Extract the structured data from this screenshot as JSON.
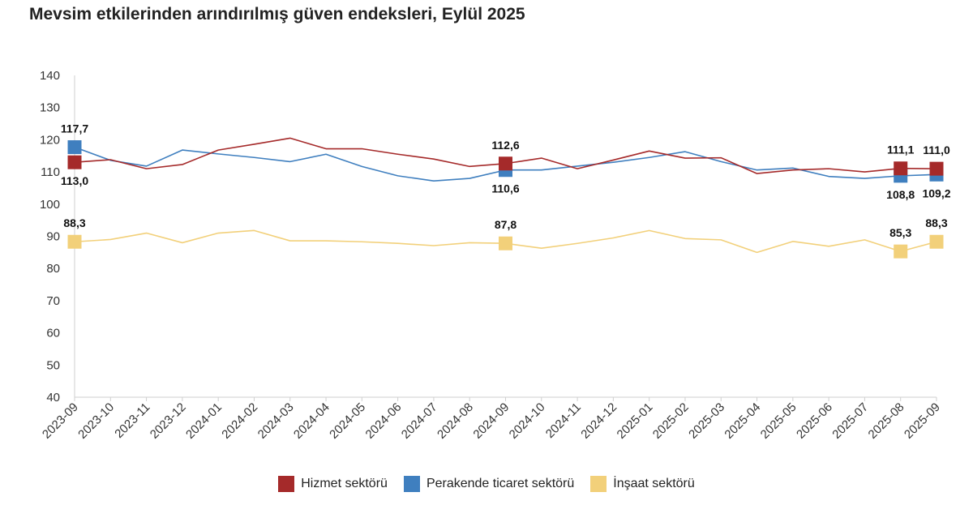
{
  "chart_data": {
    "type": "line",
    "title": "Mevsim etkilerinden arındırılmış güven endeksleri, Eylül 2025",
    "x": [
      "2023-09",
      "2023-10",
      "2023-11",
      "2023-12",
      "2024-01",
      "2024-02",
      "2024-03",
      "2024-04",
      "2024-05",
      "2024-06",
      "2024-07",
      "2024-08",
      "2024-09",
      "2024-10",
      "2024-11",
      "2024-12",
      "2025-01",
      "2025-02",
      "2025-03",
      "2025-04",
      "2025-05",
      "2025-06",
      "2025-07",
      "2025-08",
      "2025-09"
    ],
    "ylim": [
      40,
      140
    ],
    "yticks": [
      40,
      50,
      60,
      70,
      80,
      90,
      100,
      110,
      120,
      130,
      140
    ],
    "grid": false,
    "legend_position": "bottom",
    "series": [
      {
        "name": "Hizmet sektörü",
        "color": "#a52a2a",
        "values": [
          113.0,
          113.8,
          111.0,
          112.3,
          116.8,
          118.6,
          120.5,
          117.2,
          117.2,
          115.5,
          114.0,
          111.7,
          112.6,
          114.3,
          111.0,
          113.7,
          116.5,
          114.3,
          114.4,
          109.5,
          110.6,
          111.0,
          110.0,
          111.1,
          111.0
        ],
        "labels": [
          {
            "index": 0,
            "text": "113,0",
            "pos": "below"
          },
          {
            "index": 12,
            "text": "112,6",
            "pos": "above"
          },
          {
            "index": 23,
            "text": "111,1",
            "pos": "above"
          },
          {
            "index": 24,
            "text": "111,0",
            "pos": "above"
          }
        ]
      },
      {
        "name": "Perakende ticaret sektörü",
        "color": "#3f7fbf",
        "values": [
          117.7,
          113.6,
          111.8,
          116.8,
          115.6,
          114.5,
          113.2,
          115.5,
          111.7,
          108.8,
          107.2,
          108.0,
          110.6,
          110.6,
          111.8,
          113.0,
          114.5,
          116.3,
          113.2,
          110.6,
          111.2,
          108.6,
          108.0,
          108.8,
          109.2
        ],
        "labels": [
          {
            "index": 0,
            "text": "117,7",
            "pos": "above"
          },
          {
            "index": 12,
            "text": "110,6",
            "pos": "below"
          },
          {
            "index": 23,
            "text": "108,8",
            "pos": "below"
          },
          {
            "index": 24,
            "text": "109,2",
            "pos": "below"
          }
        ]
      },
      {
        "name": "İnşaat sektörü",
        "color": "#f2d07a",
        "values": [
          88.3,
          89.0,
          91.0,
          88.0,
          91.0,
          91.8,
          88.6,
          88.6,
          88.3,
          87.8,
          87.1,
          88.0,
          87.8,
          86.3,
          87.8,
          89.5,
          91.8,
          89.3,
          88.9,
          85.0,
          88.4,
          86.9,
          88.9,
          85.3,
          88.3
        ],
        "labels": [
          {
            "index": 0,
            "text": "88,3",
            "pos": "above"
          },
          {
            "index": 12,
            "text": "87,8",
            "pos": "above"
          },
          {
            "index": 23,
            "text": "85,3",
            "pos": "above"
          },
          {
            "index": 24,
            "text": "88,3",
            "pos": "above"
          }
        ]
      }
    ]
  }
}
